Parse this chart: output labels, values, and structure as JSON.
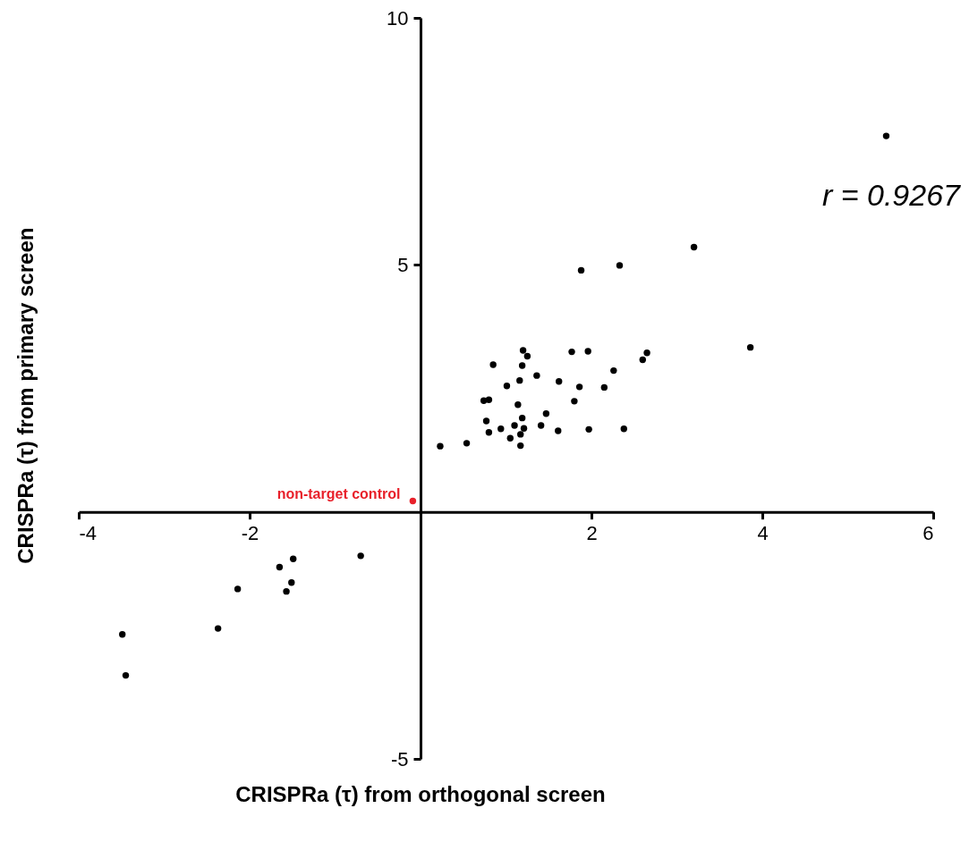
{
  "chart_data": {
    "type": "scatter",
    "xlabel": "CRISPRa (τ) from orthogonal screen",
    "ylabel": "CRISPRa (τ) from primary screen",
    "xlim": [
      -4,
      6
    ],
    "ylim": [
      -5,
      10
    ],
    "xticks": [
      -4,
      -2,
      2,
      4,
      6
    ],
    "yticks": [
      -5,
      5,
      10
    ],
    "grid": false,
    "annotations": [
      "r = 0.9267"
    ],
    "series": [
      {
        "color": "#000000",
        "x": [
          1.88,
          2.33,
          1.2,
          1.25,
          1.77,
          1.96,
          2.65,
          2.6,
          3.86,
          0.85,
          1.19,
          1.36,
          2.26,
          1.16,
          1.01,
          1.62,
          1.86,
          2.15,
          0.74,
          0.8,
          1.14,
          1.8,
          1.47,
          0.77,
          1.19,
          1.1,
          1.41,
          0.8,
          0.94,
          1.21,
          1.05,
          1.17,
          1.61,
          1.97,
          2.38,
          0.23,
          0.54,
          1.17,
          3.2,
          5.45,
          -1.49,
          -1.65,
          -0.7,
          -1.51,
          -1.57,
          -2.14,
          -2.37,
          -3.49,
          -3.45
        ],
        "values": [
          4.89,
          4.99,
          3.27,
          3.15,
          3.24,
          3.25,
          3.22,
          3.08,
          3.33,
          2.98,
          2.96,
          2.76,
          2.86,
          2.66,
          2.55,
          2.64,
          2.53,
          2.52,
          2.25,
          2.27,
          2.17,
          2.24,
          1.99,
          1.84,
          1.9,
          1.75,
          1.75,
          1.61,
          1.68,
          1.69,
          1.49,
          1.57,
          1.64,
          1.67,
          1.68,
          1.33,
          1.39,
          1.34,
          5.36,
          7.61,
          -0.95,
          -1.12,
          -0.89,
          -1.43,
          -1.61,
          -1.56,
          -2.36,
          -2.48,
          -3.31
        ]
      },
      {
        "name": "non-target control",
        "color": "#e8202a",
        "x": [
          -0.09
        ],
        "values": [
          0.22
        ]
      }
    ]
  }
}
